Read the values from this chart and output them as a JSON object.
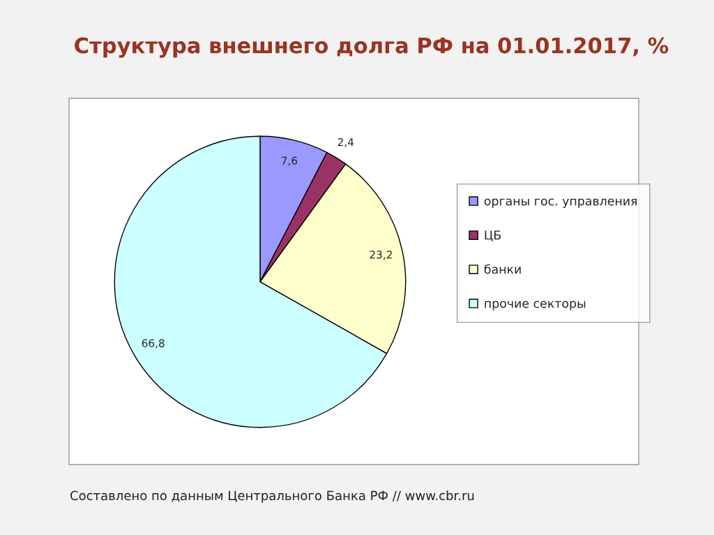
{
  "chart_data": {
    "type": "pie",
    "title": "Структура внешнего долга РФ на 01.01.2017, %",
    "categories": [
      "органы гос. управления",
      "ЦБ",
      "банки",
      "прочие секторы"
    ],
    "values": [
      7.6,
      2.4,
      23.2,
      66.8
    ],
    "value_labels": [
      "7,6",
      "2,4",
      "23,2",
      "66,8"
    ],
    "colors": [
      "#9999ff",
      "#993366",
      "#ffffcc",
      "#ccffff"
    ],
    "legend": "right",
    "annotations": [
      "Составлено по данным Центрального Банка РФ // www.cbr.ru"
    ]
  }
}
